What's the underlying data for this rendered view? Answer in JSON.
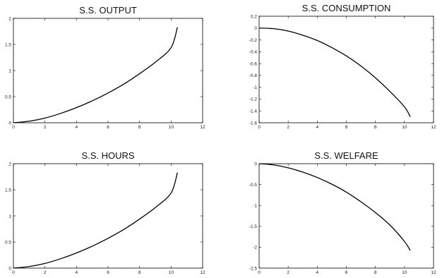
{
  "chart_data": [
    {
      "type": "line",
      "title": "S.S. OUTPUT",
      "xlabel": "",
      "ylabel": "",
      "xlim": [
        0,
        12
      ],
      "ylim": [
        0,
        2
      ],
      "xticks": [
        0,
        2,
        4,
        6,
        8,
        10,
        12
      ],
      "yticks": [
        0,
        0.5,
        1,
        1.5,
        2
      ],
      "xtick_labels": [
        "0",
        "2",
        "4",
        "6",
        "8",
        "10",
        "12"
      ],
      "ytick_labels": [
        "0",
        "0.5",
        "1",
        "1.5",
        "2"
      ],
      "grid": false,
      "series": [
        {
          "x": [
            0,
            1,
            2,
            3,
            4,
            5,
            6,
            7,
            8,
            9,
            10,
            10.4
          ],
          "y": [
            0,
            0.03,
            0.09,
            0.18,
            0.29,
            0.42,
            0.57,
            0.74,
            0.94,
            1.16,
            1.44,
            1.83
          ]
        }
      ]
    },
    {
      "type": "line",
      "title": "S.S. CONSUMPTION",
      "xlabel": "",
      "ylabel": "",
      "xlim": [
        0,
        12
      ],
      "ylim": [
        -1.6,
        0.2
      ],
      "xticks": [
        0,
        2,
        4,
        6,
        8,
        10,
        12
      ],
      "yticks": [
        0.2,
        0,
        -0.2,
        -0.4,
        -0.6,
        -0.8,
        -1,
        -1.2,
        -1.4,
        -1.6
      ],
      "xtick_labels": [
        "0",
        "2",
        "4",
        "6",
        "8",
        "10",
        "12"
      ],
      "ytick_labels": [
        "0.2",
        "0",
        "-0.2",
        "-0.4",
        "-0.6",
        "-0.8",
        "-1",
        "-1.2",
        "-1.4",
        "-1.6"
      ],
      "grid": false,
      "series": [
        {
          "x": [
            0,
            1,
            2,
            3,
            4,
            5,
            6,
            7,
            8,
            9,
            10,
            10.4
          ],
          "y": [
            0,
            -0.01,
            -0.05,
            -0.12,
            -0.21,
            -0.33,
            -0.47,
            -0.64,
            -0.84,
            -1.07,
            -1.33,
            -1.5
          ]
        }
      ]
    },
    {
      "type": "line",
      "title": "S.S. HOURS",
      "xlabel": "",
      "ylabel": "",
      "xlim": [
        0,
        12
      ],
      "ylim": [
        0,
        2
      ],
      "xticks": [
        0,
        2,
        4,
        6,
        8,
        10,
        12
      ],
      "yticks": [
        0,
        0.5,
        1,
        1.5,
        2
      ],
      "xtick_labels": [
        "0",
        "2",
        "4",
        "6",
        "8",
        "10",
        "12"
      ],
      "ytick_labels": [
        "0",
        "0.5",
        "1",
        "1.5",
        "2"
      ],
      "grid": false,
      "series": [
        {
          "x": [
            0,
            1,
            2,
            3,
            4,
            5,
            6,
            7,
            8,
            9,
            10,
            10.4
          ],
          "y": [
            0,
            0.03,
            0.09,
            0.18,
            0.29,
            0.42,
            0.57,
            0.74,
            0.94,
            1.16,
            1.44,
            1.83
          ]
        }
      ]
    },
    {
      "type": "line",
      "title": "S.S. WELFARE",
      "xlabel": "",
      "ylabel": "",
      "xlim": [
        0,
        12
      ],
      "ylim": [
        -2.5,
        0
      ],
      "xticks": [
        0,
        2,
        4,
        6,
        8,
        10,
        12
      ],
      "yticks": [
        0,
        -0.5,
        -1,
        -1.5,
        -2,
        -2.5
      ],
      "xtick_labels": [
        "0",
        "2",
        "4",
        "6",
        "8",
        "10",
        "12"
      ],
      "ytick_labels": [
        "0",
        "-0.5",
        "-1",
        "-1.5",
        "-2",
        "-2.5"
      ],
      "grid": false,
      "series": [
        {
          "x": [
            0,
            1,
            2,
            3,
            4,
            5,
            6,
            7,
            8,
            9,
            10,
            10.4
          ],
          "y": [
            0,
            -0.03,
            -0.1,
            -0.2,
            -0.33,
            -0.49,
            -0.68,
            -0.91,
            -1.17,
            -1.47,
            -1.86,
            -2.08
          ]
        }
      ]
    }
  ],
  "style": {
    "line_color": "#000000",
    "axis_color": "#000000",
    "text_color": "#111111",
    "background": "#ffffff"
  }
}
